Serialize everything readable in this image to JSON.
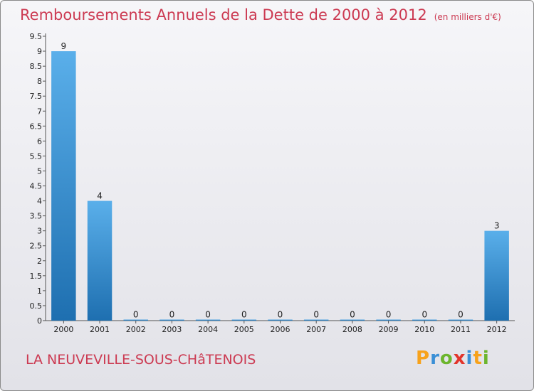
{
  "header": {
    "title": "Remboursements Annuels de la Dette de 2000 à 2012",
    "unit": "(en milliers d'€)"
  },
  "footer": {
    "commune": "LA NEUVEVILLE-SOUS-CHâTENOIS",
    "logo_letters": [
      "P",
      "r",
      "o",
      "x",
      "i",
      "t",
      "i"
    ],
    "logo_colors": [
      "#f7a21b",
      "#3a8fd6",
      "#6cb52d",
      "#e2342b",
      "#3a8fd6",
      "#f7a21b",
      "#6cb52d"
    ]
  },
  "chart_data": {
    "type": "bar",
    "title": "Remboursements Annuels de la Dette de 2000 à 2012",
    "xlabel": "",
    "ylabel": "",
    "categories": [
      "2000",
      "2001",
      "2002",
      "2003",
      "2004",
      "2005",
      "2006",
      "2007",
      "2008",
      "2009",
      "2010",
      "2011",
      "2012"
    ],
    "values": [
      9,
      4,
      0,
      0,
      0,
      0,
      0,
      0,
      0,
      0,
      0,
      0,
      3
    ],
    "value_labels": [
      "9",
      "4",
      "0",
      "0",
      "0",
      "0",
      "0",
      "0",
      "0",
      "0",
      "0",
      "0",
      "3"
    ],
    "y_ticks": [
      0,
      0.5,
      1,
      1.5,
      2,
      2.5,
      3,
      3.5,
      4,
      4.5,
      5,
      5.5,
      6,
      6.5,
      7,
      7.5,
      8,
      8.5,
      9,
      9.5
    ],
    "y_tick_labels": [
      "0",
      "0.5",
      "1",
      "1.5",
      "2",
      "2.5",
      "3",
      "3.5",
      "4",
      "4.5",
      "5",
      "5.5",
      "6",
      "6.5",
      "7",
      "7.5",
      "8",
      "8.5",
      "9",
      "9.5"
    ],
    "ylim": [
      0,
      9.5
    ],
    "grid": false,
    "bar_color_top": "#5aafea",
    "bar_color_bottom": "#1e6fb0"
  }
}
